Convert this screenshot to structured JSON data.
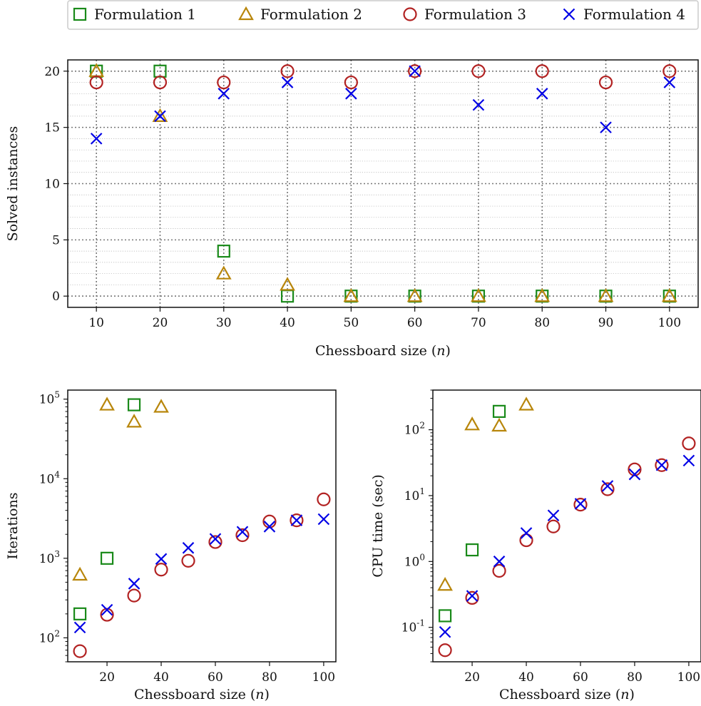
{
  "legend": {
    "placement": "top-center",
    "entries": [
      {
        "label": "Formulation 1",
        "marker": "square",
        "color": "#1a8a1a"
      },
      {
        "label": "Formulation 2",
        "marker": "triangle",
        "color": "#b8860b"
      },
      {
        "label": "Formulation 3",
        "marker": "circle",
        "color": "#b22222"
      },
      {
        "label": "Formulation 4",
        "marker": "x",
        "color": "#0000e6"
      }
    ]
  },
  "chart_data": [
    {
      "type": "scatter",
      "xlabel": "Chessboard size (n)",
      "ylabel": "Solved instances",
      "x": [
        10,
        20,
        30,
        40,
        50,
        60,
        70,
        80,
        90,
        100
      ],
      "xlim": [
        5.5,
        104.5
      ],
      "ylim": [
        -1,
        21
      ],
      "yscale": "linear",
      "yticks": [
        0,
        5,
        10,
        15,
        20
      ],
      "ytick_labels": [
        "0",
        "5",
        "10",
        "15",
        "20"
      ],
      "grid": "dotted, major and minor",
      "series": [
        {
          "name": "Formulation 1",
          "values": [
            20,
            20,
            4,
            0,
            0,
            0,
            0,
            0,
            0,
            0
          ]
        },
        {
          "name": "Formulation 2",
          "values": [
            20,
            16,
            2,
            1,
            0,
            0,
            0,
            0,
            0,
            0
          ]
        },
        {
          "name": "Formulation 3",
          "values": [
            19,
            19,
            19,
            20,
            19,
            20,
            20,
            20,
            19,
            20
          ]
        },
        {
          "name": "Formulation 4",
          "values": [
            14,
            16,
            18,
            19,
            18,
            20,
            17,
            18,
            15,
            19
          ]
        }
      ]
    },
    {
      "type": "scatter",
      "xlabel": "Chessboard size (n)",
      "ylabel": "Iterations",
      "xlim": [
        5.5,
        104.5
      ],
      "ylim": [
        50,
        130000
      ],
      "yscale": "log",
      "xticks": [
        20,
        40,
        60,
        80,
        100
      ],
      "yticks": [
        100,
        1000,
        10000,
        100000
      ],
      "ytick_labels": [
        "10^2",
        "10^3",
        "10^4",
        "10^5"
      ],
      "grid": "off",
      "series": [
        {
          "name": "Formulation 1",
          "x": [
            10,
            20,
            30
          ],
          "values": [
            200,
            1000,
            85000
          ]
        },
        {
          "name": "Formulation 2",
          "x": [
            10,
            20,
            30,
            40
          ],
          "values": [
            620,
            85000,
            52000,
            80000
          ]
        },
        {
          "name": "Formulation 3",
          "x": [
            10,
            20,
            30,
            40,
            50,
            60,
            70,
            80,
            90,
            100
          ],
          "values": [
            68,
            195,
            340,
            720,
            930,
            1600,
            1950,
            2900,
            3000,
            5500
          ]
        },
        {
          "name": "Formulation 4",
          "x": [
            10,
            20,
            30,
            40,
            50,
            60,
            70,
            80,
            90,
            100
          ],
          "values": [
            135,
            225,
            480,
            980,
            1350,
            1750,
            2150,
            2500,
            3000,
            3100
          ]
        }
      ]
    },
    {
      "type": "scatter",
      "xlabel": "Chessboard size (n)",
      "ylabel": "CPU time (sec)",
      "xlim": [
        5.5,
        104.5
      ],
      "ylim": [
        0.03,
        400
      ],
      "yscale": "log",
      "xticks": [
        20,
        40,
        60,
        80,
        100
      ],
      "yticks": [
        0.1,
        1,
        10,
        100
      ],
      "ytick_labels": [
        "10^-1",
        "10^0",
        "10^1",
        "10^2"
      ],
      "grid": "off",
      "series": [
        {
          "name": "Formulation 1",
          "x": [
            10,
            20,
            30
          ],
          "values": [
            0.15,
            1.5,
            190
          ]
        },
        {
          "name": "Formulation 2",
          "x": [
            10,
            20,
            30,
            40
          ],
          "values": [
            0.44,
            120,
            115,
            240
          ]
        },
        {
          "name": "Formulation 3",
          "x": [
            10,
            20,
            30,
            40,
            50,
            60,
            70,
            80,
            90,
            100
          ],
          "values": [
            0.045,
            0.28,
            0.72,
            2.1,
            3.4,
            7.3,
            12.5,
            25,
            29,
            62
          ]
        },
        {
          "name": "Formulation 4",
          "x": [
            10,
            20,
            30,
            40,
            50,
            60,
            70,
            80,
            90,
            100
          ],
          "values": [
            0.085,
            0.3,
            1.0,
            2.7,
            5.0,
            7.5,
            14,
            21,
            29,
            34
          ]
        }
      ]
    }
  ]
}
